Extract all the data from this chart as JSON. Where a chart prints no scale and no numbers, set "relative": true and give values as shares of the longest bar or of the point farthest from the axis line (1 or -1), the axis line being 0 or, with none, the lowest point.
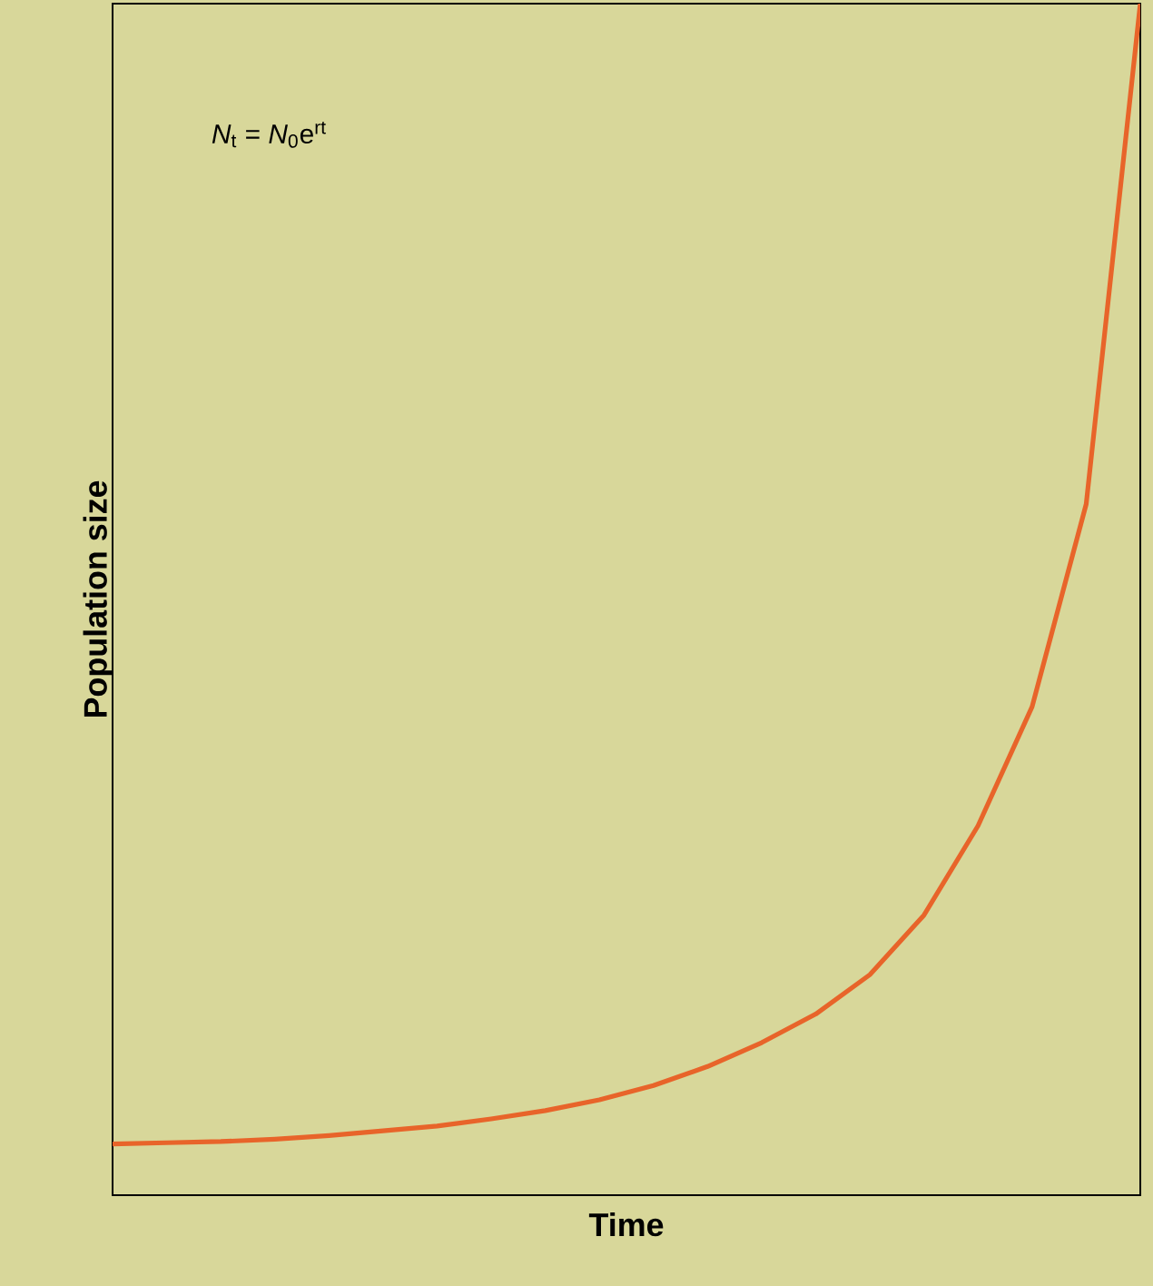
{
  "chart_data": {
    "type": "line",
    "relative": true,
    "xlabel": "Time",
    "ylabel": "Population size",
    "annotations": [
      "*N*$_{t}$ = *N*$_{0}$e$^{rt}$"
    ],
    "categories": [
      null,
      null,
      null,
      null,
      null,
      null,
      null,
      null,
      null,
      null,
      null,
      null,
      null,
      null,
      null,
      null,
      null,
      null,
      null,
      null
    ],
    "series": [
      {
        "color": "#e8642a",
        "values": [
          0.043,
          0.044,
          0.045,
          0.047,
          0.05,
          0.054,
          0.058,
          0.064,
          0.071,
          0.08,
          0.092,
          0.108,
          0.128,
          0.152,
          0.185,
          0.235,
          0.31,
          0.41,
          0.58,
          1
        ]
      }
    ]
  }
}
